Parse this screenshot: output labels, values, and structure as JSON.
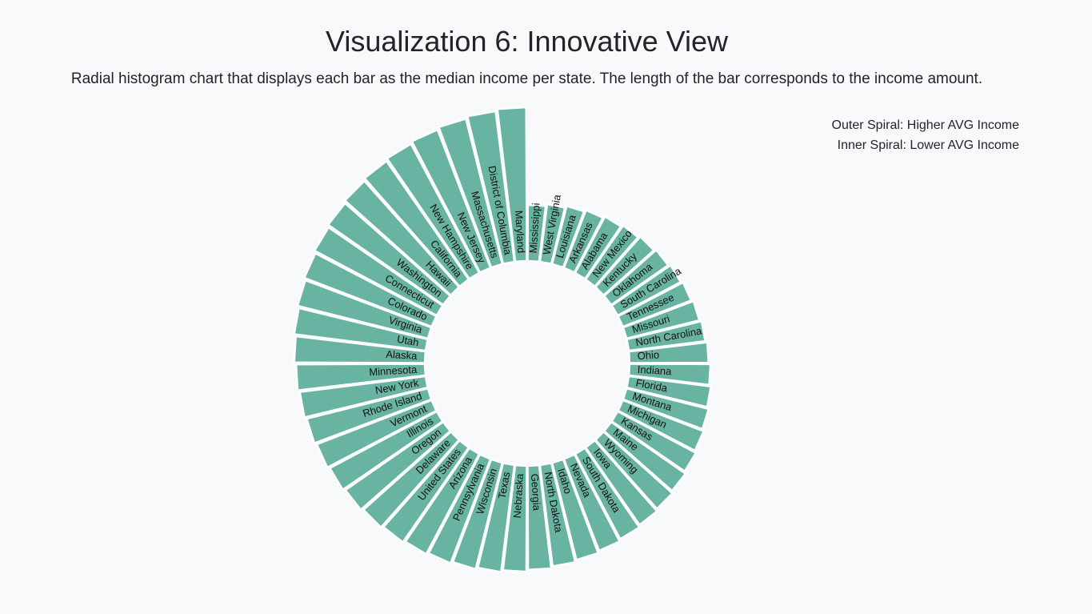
{
  "header": {
    "title": "Visualization 6: Innovative View",
    "subtitle": "Radial histogram chart that displays each bar as the median income per state. The length of the bar corresponds to the income amount."
  },
  "legend": {
    "outer": "Outer Spiral: Higher AVG Income",
    "inner": "Inner Spiral: Lower AVG Income"
  },
  "chart_data": {
    "type": "bar",
    "layout": "radial",
    "color": "#69b3a2",
    "categories": [
      "Mississippi",
      "West Virginia",
      "Louisiana",
      "Arkansas",
      "Alabama",
      "New Mexico",
      "Kentucky",
      "Oklahoma",
      "South Carolina",
      "Tennessee",
      "Missouri",
      "North Carolina",
      "Ohio",
      "Indiana",
      "Florida",
      "Montana",
      "Michigan",
      "Kansas",
      "Maine",
      "Wyoming",
      "Iowa",
      "South Dakota",
      "Nevada",
      "Idaho",
      "North Dakota",
      "Georgia",
      "Nebraska",
      "Texas",
      "Wisconsin",
      "Pennsylvania",
      "Arizona",
      "United States",
      "Delaware",
      "Oregon",
      "Illinois",
      "Vermont",
      "Rhode Island",
      "New York",
      "Minnesota",
      "Alaska",
      "Utah",
      "Virginia",
      "Colorado",
      "Connecticut",
      "Washington",
      "Hawaii",
      "California",
      "New Hampshire",
      "New Jersey",
      "Massachusetts",
      "District of Columbia",
      "Maryland"
    ],
    "values": [
      1.0,
      1.015,
      1.03,
      1.045,
      1.06,
      1.075,
      1.09,
      1.105,
      1.12,
      1.135,
      1.15,
      1.165,
      1.18,
      1.195,
      1.21,
      1.225,
      1.24,
      1.255,
      1.27,
      1.285,
      1.3,
      1.315,
      1.33,
      1.345,
      1.36,
      1.375,
      1.39,
      1.405,
      1.42,
      1.435,
      1.45,
      1.465,
      1.48,
      1.495,
      1.51,
      1.525,
      1.54,
      1.555,
      1.57,
      1.585,
      1.6,
      1.615,
      1.63,
      1.645,
      1.66,
      1.675,
      1.69,
      1.705,
      1.72,
      1.735,
      1.75,
      1.765
    ]
  }
}
